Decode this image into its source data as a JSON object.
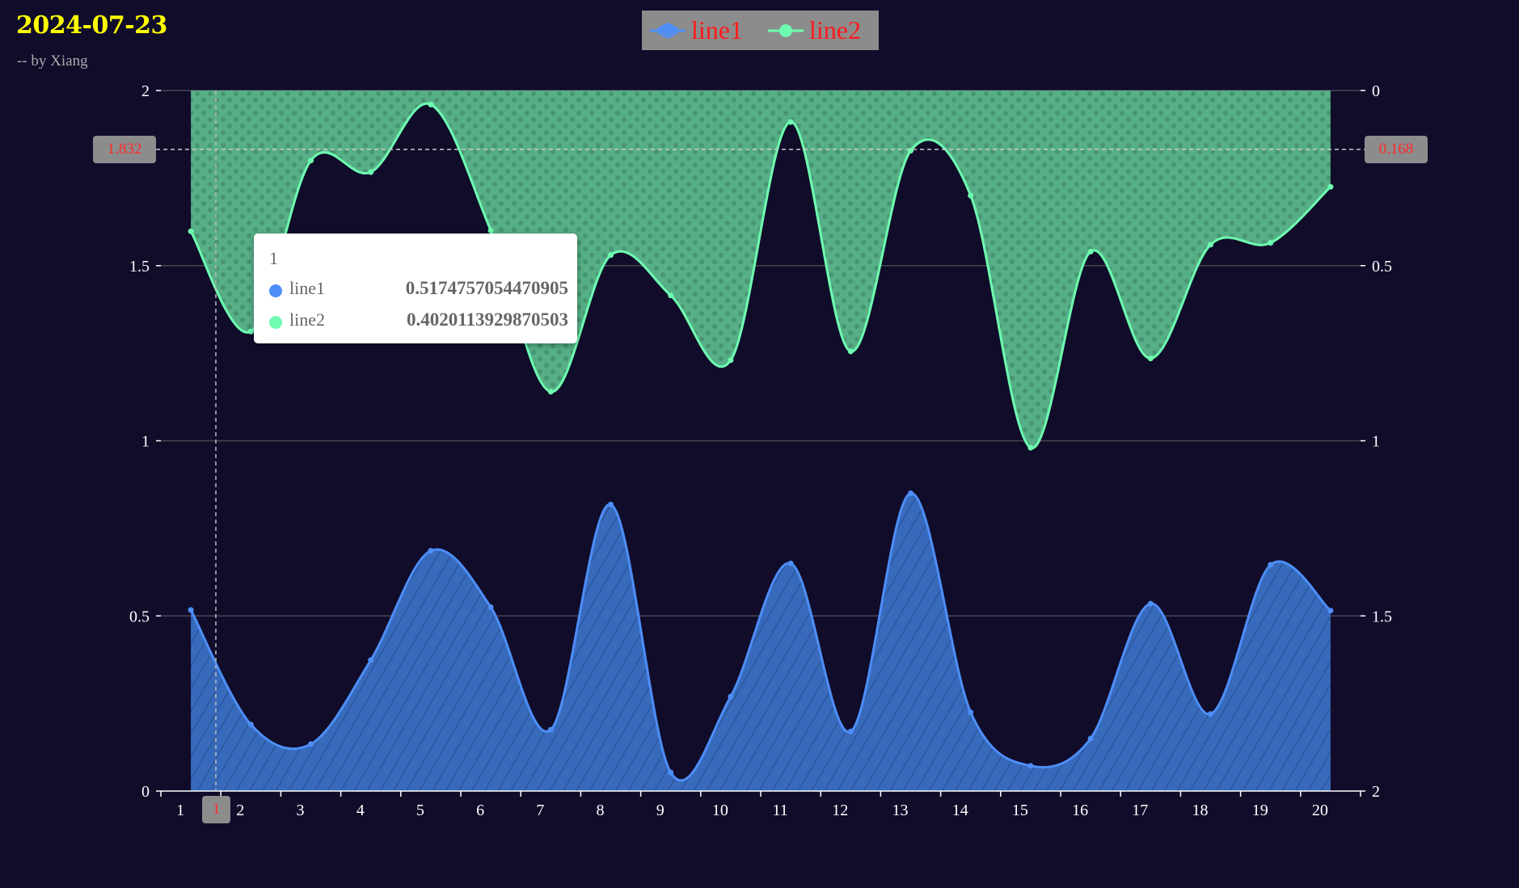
{
  "header": {
    "title": "2024-07-23",
    "subtitle": "-- by Xiang"
  },
  "legend": [
    {
      "name": "line1",
      "color": "#4d8ef7",
      "icon": "layers-icon"
    },
    {
      "name": "line2",
      "color": "#6efcb0",
      "icon": "circle-line-icon"
    }
  ],
  "tooltip": {
    "title": "1",
    "rows": [
      {
        "name": "line1",
        "value": "0.5174757054470905",
        "color": "#4d8ef7"
      },
      {
        "name": "line2",
        "value": "0.4020113929870503",
        "color": "#6efcb0"
      }
    ]
  },
  "pointer": {
    "left_label": "1.832",
    "right_label": "0.168",
    "x_label": "1"
  },
  "chart_data": {
    "type": "area",
    "categories": [
      "1",
      "2",
      "3",
      "4",
      "5",
      "6",
      "7",
      "8",
      "9",
      "10",
      "11",
      "12",
      "13",
      "14",
      "15",
      "16",
      "17",
      "18",
      "19",
      "20"
    ],
    "series": [
      {
        "name": "line1",
        "axis": "left",
        "color": "#4d8ef7",
        "fill": "#3a6fc4",
        "values": [
          0.517,
          0.19,
          0.134,
          0.374,
          0.686,
          0.525,
          0.175,
          0.818,
          0.053,
          0.27,
          0.65,
          0.17,
          0.85,
          0.225,
          0.072,
          0.15,
          0.535,
          0.22,
          0.646,
          0.515
        ]
      },
      {
        "name": "line2",
        "axis": "right",
        "inverse": true,
        "color": "#6efcb0",
        "fill": "#5ab88c",
        "values": [
          0.402,
          0.688,
          0.2,
          0.233,
          0.04,
          0.4,
          0.86,
          0.47,
          0.585,
          0.77,
          0.09,
          0.745,
          0.172,
          0.3,
          1.02,
          0.46,
          0.765,
          0.44,
          0.435,
          0.275
        ]
      }
    ],
    "y_left": {
      "min": 0,
      "max": 2,
      "ticks": [
        "0",
        "0.5",
        "1",
        "1.5",
        "2"
      ]
    },
    "y_right": {
      "min": 0,
      "max": 2,
      "inverse": true,
      "ticks": [
        "0",
        "0.5",
        "1",
        "1.5",
        "2"
      ]
    },
    "grid": true,
    "legend_position": "top-center",
    "smooth": true
  }
}
